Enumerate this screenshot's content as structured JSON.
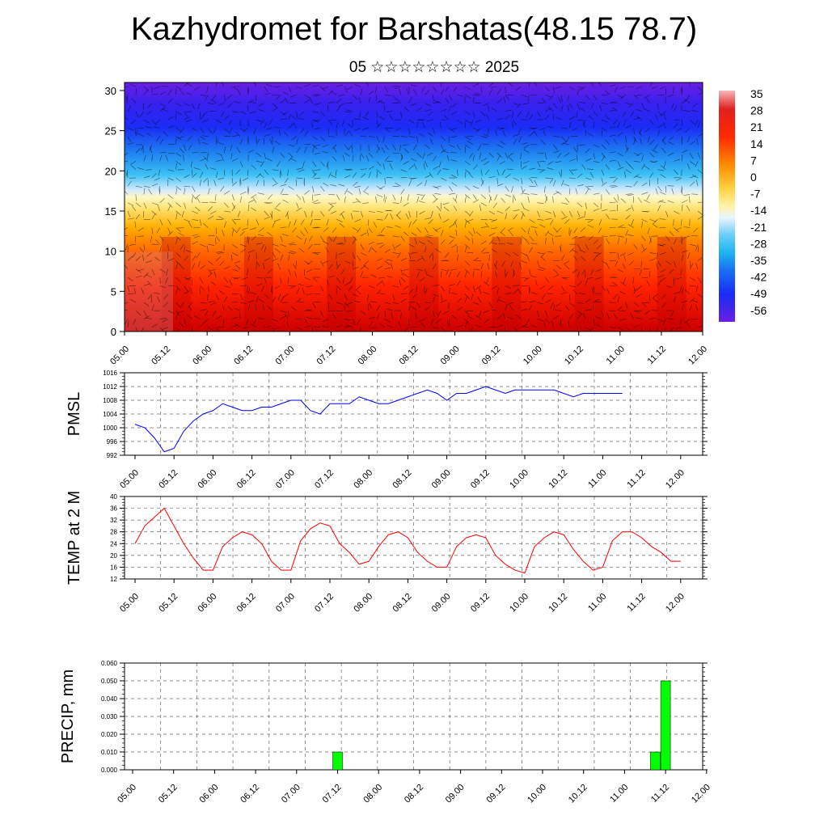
{
  "page": {
    "title": "Kazhydromet for Barshatas(48.15 78.7)",
    "subtitle": "05 ☆☆☆☆☆☆☆☆ 2025"
  },
  "chart_data": [
    {
      "type": "heatmap",
      "title": "",
      "ylim": [
        0,
        31
      ],
      "y_ticks": [
        "0",
        "5",
        "10",
        "15",
        "20",
        "25",
        "30"
      ],
      "x_ticks": [
        "05.00",
        "05.12",
        "06.00",
        "06.12",
        "07.00",
        "07.12",
        "08.00",
        "08.12",
        "09.00",
        "09.12",
        "10.00",
        "10.12",
        "11.00",
        "11.12",
        "12.00"
      ],
      "colorbar_ticks": [
        "35",
        "28",
        "21",
        "14",
        "7",
        "0",
        "-7",
        "-14",
        "-21",
        "-28",
        "-35",
        "-42",
        "-49",
        "-56"
      ],
      "colorbar_range": [
        -60,
        37
      ],
      "colors": {
        "hot": "#c90000",
        "red": "#ff2a00",
        "orange": "#ff8a00",
        "yellow": "#ffe87a",
        "pale": "#e6f2ff",
        "cyan": "#1eb4f0",
        "blue": "#1a3cf5",
        "violet": "#6a1fe0"
      },
      "note_vectors": "overlaid black wind arrows"
    },
    {
      "type": "line",
      "ylabel": "PMSL",
      "ylim": [
        992,
        1016
      ],
      "y_ticks": [
        "992",
        "996",
        "1000",
        "1004",
        "1008",
        "1012",
        "1016"
      ],
      "x_ticks": [
        "05.00",
        "05.12",
        "06.00",
        "06.12",
        "07.00",
        "07.12",
        "08.00",
        "08.12",
        "09.00",
        "09.12",
        "10.00",
        "10.12",
        "11.00",
        "11.12",
        "12.00"
      ],
      "step_hours": 3,
      "series": [
        {
          "color": "#0000ff",
          "values": [
            1001,
            1000,
            997,
            993,
            994,
            999,
            1002,
            1004,
            1005,
            1007,
            1006,
            1005,
            1005,
            1006,
            1006,
            1007,
            1008,
            1008,
            1005,
            1004,
            1007,
            1007,
            1007,
            1009,
            1008,
            1007,
            1007,
            1008,
            1009,
            1010,
            1011,
            1010,
            1008,
            1010,
            1010,
            1011,
            1012,
            1011,
            1010,
            1011,
            1011,
            1011,
            1011,
            1011,
            1010,
            1009,
            1010,
            1010,
            1010,
            1010,
            1010
          ]
        }
      ]
    },
    {
      "type": "line",
      "ylabel": "TEMP at 2 M",
      "ylim": [
        12,
        40
      ],
      "y_ticks": [
        "12",
        "16",
        "20",
        "24",
        "28",
        "32",
        "36",
        "40"
      ],
      "x_ticks": [
        "05.00",
        "05.12",
        "06.00",
        "06.12",
        "07.00",
        "07.12",
        "08.00",
        "08.12",
        "09.00",
        "09.12",
        "10.00",
        "10.12",
        "11.00",
        "11.12",
        "12.00"
      ],
      "step_hours": 3,
      "series": [
        {
          "color": "#ff0000",
          "values": [
            24,
            30,
            33,
            36,
            30,
            24,
            19,
            15,
            15,
            23,
            26,
            28,
            27,
            24,
            18,
            15,
            15,
            25,
            29,
            31,
            30,
            24,
            21,
            17,
            18,
            23,
            27,
            28,
            26,
            21,
            18,
            16,
            16,
            23,
            26,
            27,
            26,
            20,
            17,
            15,
            14,
            23,
            26,
            28,
            27,
            22,
            18,
            15,
            16,
            25,
            28,
            28,
            26,
            23,
            21,
            18,
            18
          ]
        }
      ]
    },
    {
      "type": "bar",
      "ylabel": "PRECIP, mm",
      "ylim": [
        0,
        0.06
      ],
      "y_ticks": [
        "0.000",
        "0.010",
        "0.020",
        "0.030",
        "0.040",
        "0.050",
        "0.060"
      ],
      "x_ticks": [
        "05.00",
        "05.12",
        "06.00",
        "06.12",
        "07.00",
        "07.12",
        "08.00",
        "08.12",
        "09.00",
        "09.12",
        "10.00",
        "10.12",
        "11.00",
        "11.12",
        "12.00"
      ],
      "bar_color": "#00ff00",
      "bars": [
        {
          "hour": 60,
          "value": 0.01
        },
        {
          "hour": 153,
          "value": 0.01
        },
        {
          "hour": 156,
          "value": 0.05
        }
      ]
    }
  ]
}
